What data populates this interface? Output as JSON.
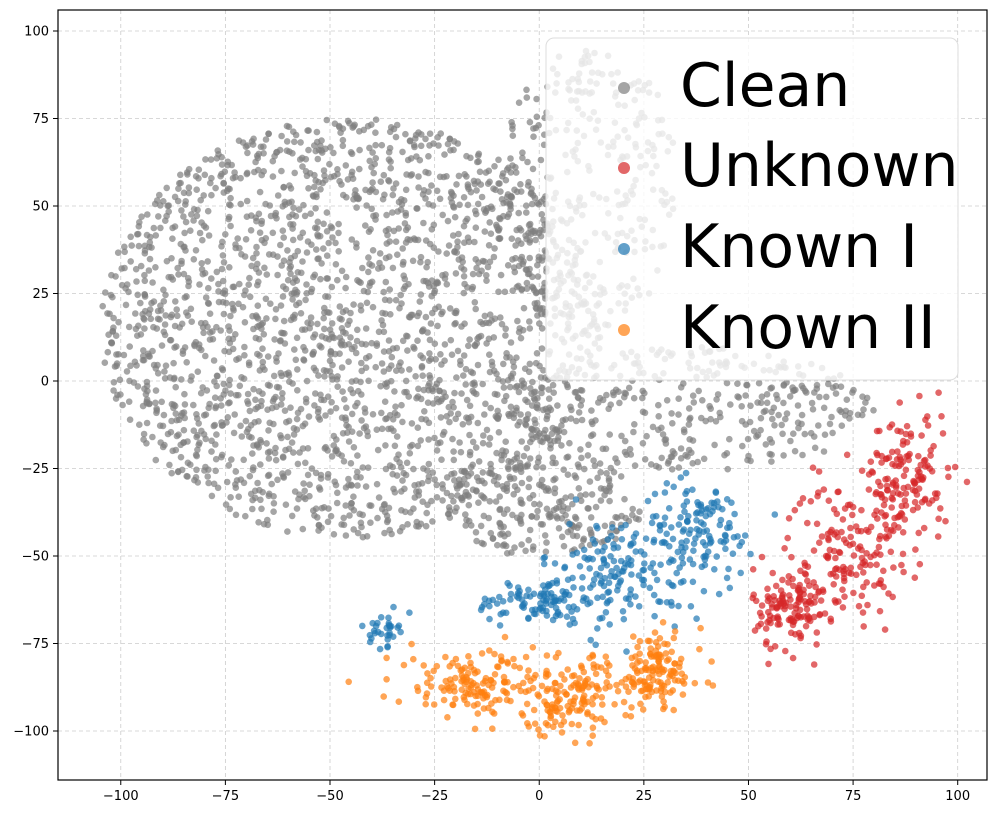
{
  "chart_data": {
    "type": "scatter",
    "xlim": [
      -115,
      107
    ],
    "ylim": [
      -114,
      106
    ],
    "xticks": [
      -100,
      -75,
      -50,
      -25,
      0,
      25,
      50,
      75,
      100
    ],
    "yticks": [
      100,
      75,
      50,
      25,
      0,
      -25,
      -50,
      -75,
      -100
    ],
    "xtick_labels": [
      "−100",
      "−75",
      "−50",
      "−25",
      "0",
      "25",
      "50",
      "75",
      "100"
    ],
    "ytick_labels": [
      "100",
      "75",
      "50",
      "25",
      "0",
      "−25",
      "−50",
      "−75",
      "−100"
    ],
    "grid": true,
    "grid_style": "dashed",
    "legend_position": "top-right",
    "series": [
      {
        "name": "Clean",
        "color": "#7f7f7f",
        "count": 3000,
        "regions": [
          {
            "cx": -45,
            "cy": 15,
            "rx": 60,
            "ry": 60,
            "weight": 0.7
          },
          {
            "cx": 12,
            "cy": 55,
            "rx": 22,
            "ry": 40,
            "weight": 0.1
          },
          {
            "cx": 35,
            "cy": -8,
            "rx": 45,
            "ry": 18,
            "weight": 0.12
          },
          {
            "cx": 0,
            "cy": -35,
            "rx": 25,
            "ry": 15,
            "weight": 0.08
          }
        ]
      },
      {
        "name": "Unknown",
        "color": "#d62728",
        "count": 420,
        "regions": [
          {
            "cx": 88,
            "cy": -28,
            "rx": 9,
            "ry": 18,
            "weight": 0.35
          },
          {
            "cx": 73,
            "cy": -48,
            "rx": 12,
            "ry": 17,
            "weight": 0.35
          },
          {
            "cx": 60,
            "cy": -65,
            "rx": 8,
            "ry": 11,
            "weight": 0.3
          }
        ]
      },
      {
        "name": "Known I",
        "color": "#1f77b4",
        "count": 400,
        "regions": [
          {
            "cx": 20,
            "cy": -55,
            "rx": 18,
            "ry": 14,
            "weight": 0.4
          },
          {
            "cx": 38,
            "cy": -42,
            "rx": 12,
            "ry": 12,
            "weight": 0.3
          },
          {
            "cx": 0,
            "cy": -63,
            "rx": 14,
            "ry": 6,
            "weight": 0.22
          },
          {
            "cx": -37,
            "cy": -71,
            "rx": 3,
            "ry": 4,
            "weight": 0.08
          }
        ]
      },
      {
        "name": "Known II",
        "color": "#ff7f0e",
        "count": 420,
        "regions": [
          {
            "cx": -15,
            "cy": -87,
            "rx": 18,
            "ry": 9,
            "weight": 0.35
          },
          {
            "cx": 8,
            "cy": -90,
            "rx": 14,
            "ry": 10,
            "weight": 0.35
          },
          {
            "cx": 28,
            "cy": -83,
            "rx": 10,
            "ry": 10,
            "weight": 0.3
          }
        ]
      }
    ]
  }
}
